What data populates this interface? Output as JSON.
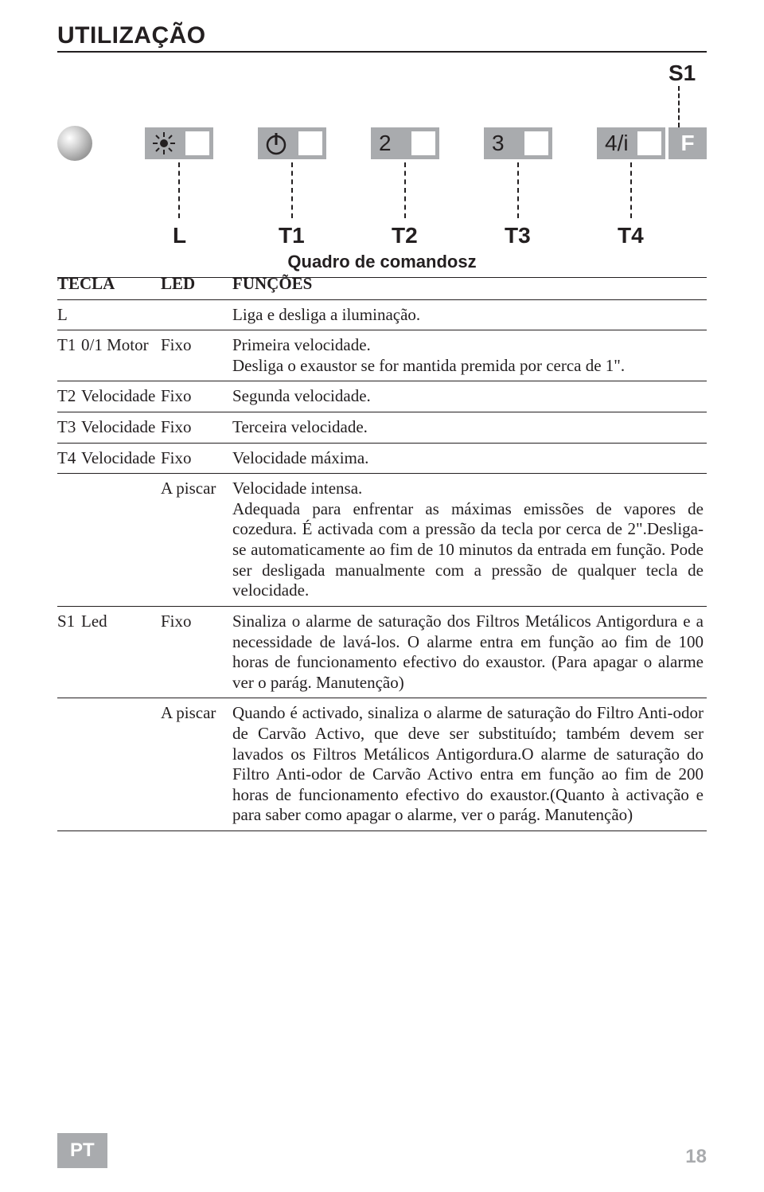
{
  "title": "UTILIZAÇÃO",
  "diagram": {
    "s1_label": "S1",
    "buttons": {
      "light": "light",
      "b1": "1",
      "b2": "2",
      "b3": "3",
      "b4": "4/i",
      "f": "F"
    },
    "labels": {
      "L": "L",
      "T1": "T1",
      "T2": "T2",
      "T3": "T3",
      "T4": "T4"
    },
    "caption": "Quadro de comandosz"
  },
  "headers": {
    "tecla": "TECLA",
    "led": "LED",
    "funcoes": "FUNÇÕES"
  },
  "rows": {
    "L": {
      "key": "L",
      "sub": "",
      "led": "",
      "func": "Liga e desliga a iluminação."
    },
    "T1": {
      "key": "T1",
      "sub": "0/1 Motor",
      "led": "Fixo",
      "func": "Primeira velocidade.\nDesliga o exaustor se for mantida premida por cerca de 1\"."
    },
    "T2": {
      "key": "T2",
      "sub": "Velocidade",
      "led": "Fixo",
      "func": "Segunda velocidade."
    },
    "T3": {
      "key": "T3",
      "sub": "Velocidade",
      "led": "Fixo",
      "func": "Terceira velocidade."
    },
    "T4a": {
      "key": "T4",
      "sub": "Velocidade",
      "led": "Fixo",
      "func": "Velocidade máxima."
    },
    "T4b": {
      "key": "",
      "sub": "",
      "led": "A piscar",
      "func": "Velocidade intensa.\nAdequada para enfrentar as máximas emissões de vapores de cozedura. É activada com a pressão da tecla por cerca de 2\".Desliga-se automaticamente ao fim de 10 minutos da entrada em função. Pode ser desligada manualmente com a pressão de qualquer tecla de velocidade."
    },
    "S1a": {
      "key": "S1",
      "sub": "Led",
      "led": "Fixo",
      "func": "Sinaliza o alarme de saturação dos Filtros Metálicos Antigordura e a necessidade de lavá-los. O alarme entra em função ao fim de 100 horas de funcionamento efectivo do exaustor. (Para apagar o alarme ver o parág. Manutenção)"
    },
    "S1b": {
      "key": "",
      "sub": "",
      "led": "A piscar",
      "func": "Quando é activado, sinaliza o alarme de saturação do Filtro Anti-odor de Carvão Activo, que deve ser substituído; também devem ser lavados os Filtros Metálicos Antigordura.O alarme de saturação do Filtro Anti-odor de Carvão Activo entra em função ao fim de 200 horas de funcionamento efectivo do exaustor.(Quanto à activação e para saber como apagar o alarme, ver o parág. Manutenção)"
    }
  },
  "footer": {
    "lang": "PT",
    "page": "18"
  },
  "colors": {
    "text": "#231f20",
    "panel_grey": "#a9abae",
    "footer_grey": "#a9abae",
    "white": "#ffffff"
  },
  "typography": {
    "title_family": "Arial",
    "title_size_pt": 22,
    "body_family": "Times New Roman",
    "body_size_pt": 15,
    "diagram_label_size_pt": 20,
    "caption_size_pt": 16
  }
}
